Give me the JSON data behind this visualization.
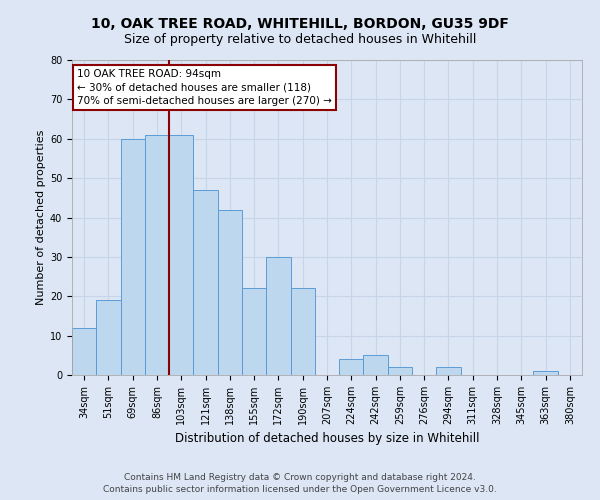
{
  "title1": "10, OAK TREE ROAD, WHITEHILL, BORDON, GU35 9DF",
  "title2": "Size of property relative to detached houses in Whitehill",
  "xlabel": "Distribution of detached houses by size in Whitehill",
  "ylabel": "Number of detached properties",
  "footer1": "Contains HM Land Registry data © Crown copyright and database right 2024.",
  "footer2": "Contains public sector information licensed under the Open Government Licence v3.0.",
  "annotation_line1": "10 OAK TREE ROAD: 94sqm",
  "annotation_line2": "← 30% of detached houses are smaller (118)",
  "annotation_line3": "70% of semi-detached houses are larger (270) →",
  "bar_labels": [
    "34sqm",
    "51sqm",
    "69sqm",
    "86sqm",
    "103sqm",
    "121sqm",
    "138sqm",
    "155sqm",
    "172sqm",
    "190sqm",
    "207sqm",
    "224sqm",
    "242sqm",
    "259sqm",
    "276sqm",
    "294sqm",
    "311sqm",
    "328sqm",
    "345sqm",
    "363sqm",
    "380sqm"
  ],
  "bar_values": [
    12,
    19,
    60,
    61,
    61,
    47,
    42,
    22,
    30,
    22,
    0,
    4,
    5,
    2,
    0,
    2,
    0,
    0,
    0,
    1,
    0
  ],
  "bar_color": "#bdd7ee",
  "bar_edge_color": "#5b9bd5",
  "vline_color": "#8b0000",
  "annotation_box_color": "#8b0000",
  "ylim": [
    0,
    80
  ],
  "yticks": [
    0,
    10,
    20,
    30,
    40,
    50,
    60,
    70,
    80
  ],
  "grid_color": "#c8d4e8",
  "background_color": "#dce6f5",
  "plot_bg_color": "#dce6f5",
  "title1_fontsize": 10,
  "title2_fontsize": 9,
  "xlabel_fontsize": 8.5,
  "ylabel_fontsize": 8,
  "tick_fontsize": 7,
  "footer_fontsize": 6.5,
  "annotation_fontsize": 7.5
}
